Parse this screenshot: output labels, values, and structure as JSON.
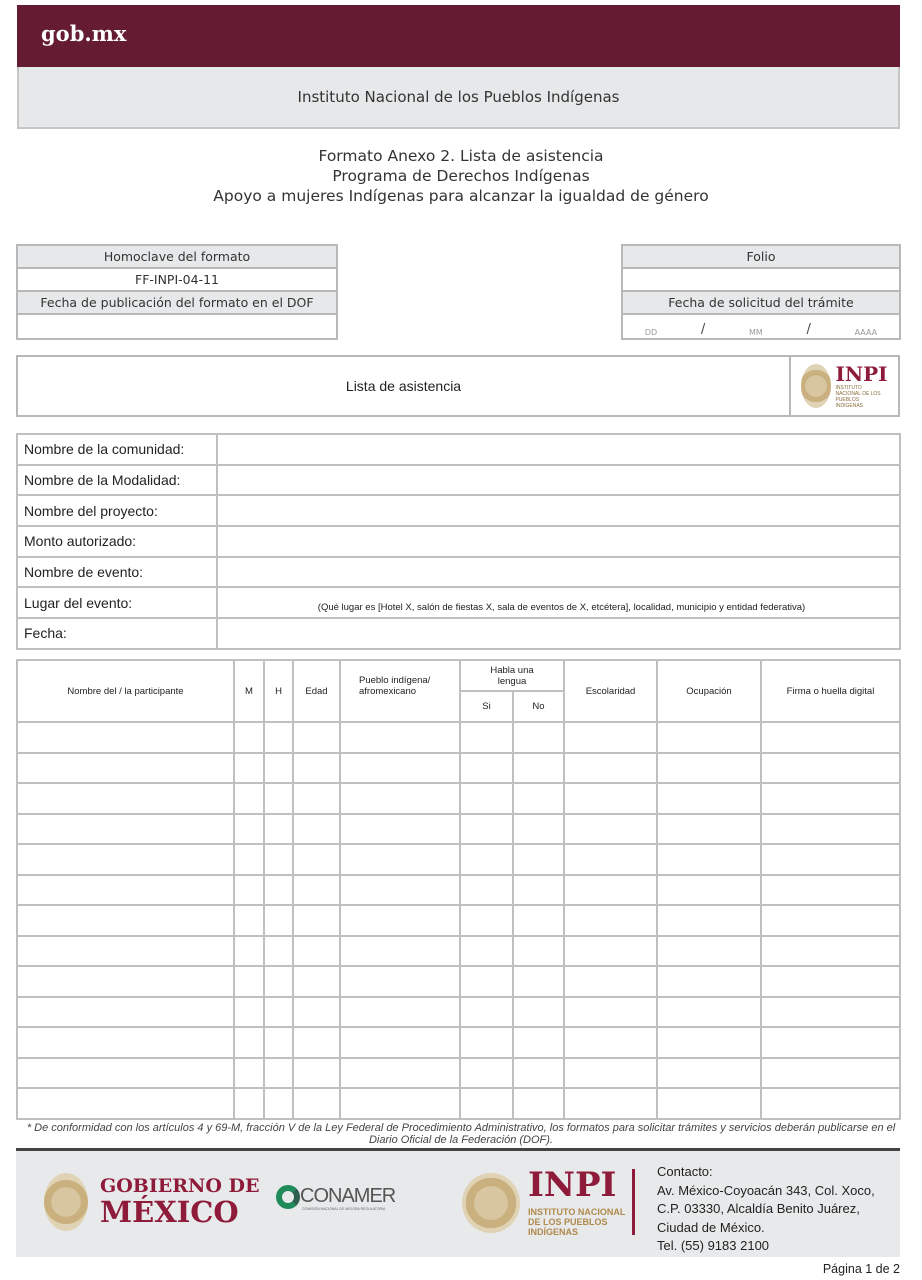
{
  "header": {
    "logo": "gob.mx",
    "institution": "Instituto Nacional de los Pueblos Indígenas"
  },
  "titles": [
    "Formato Anexo 2. Lista de asistencia",
    "Programa de Derechos Indígenas",
    "Apoyo a mujeres Indígenas para alcanzar la igualdad de género"
  ],
  "left_box": {
    "homoclave_label": "Homoclave del formato",
    "homoclave_value": "FF-INPI-04-11",
    "fecha_pub_label": "Fecha de publicación del formato en el DOF",
    "fecha_pub_value": ""
  },
  "right_box": {
    "folio_label": "Folio",
    "folio_value": "",
    "fecha_sol_label": "Fecha de solicitud del trámite",
    "dd": "DD",
    "mm": "MM",
    "aaaa": "AAAA",
    "sep": "/"
  },
  "lista": {
    "title": "Lista de asistencia",
    "logo_text": "INPI",
    "logo_sub": "INSTITUTO NACIONAL DE LOS PUEBLOS INDÍGENAS"
  },
  "info_rows": [
    {
      "label": "Nombre de la comunidad:",
      "value": ""
    },
    {
      "label": "Nombre de la Modalidad:",
      "value": ""
    },
    {
      "label": "Nombre del proyecto:",
      "value": ""
    },
    {
      "label": "Monto autorizado:",
      "value": ""
    },
    {
      "label": "Nombre de evento:",
      "value": ""
    },
    {
      "label": "Lugar del evento:",
      "value": "(Qué lugar es [Hotel X, salón de fiestas X, sala de eventos de X, etcétera], localidad, municipio y entidad federativa)"
    },
    {
      "label": "Fecha:",
      "value": ""
    }
  ],
  "participants": {
    "headers": {
      "nombre": "Nombre del / la participante",
      "m": "M",
      "h": "H",
      "edad": "Edad",
      "pueblo": "Pueblo indígena/ afromexicano",
      "habla": "Habla una lengua",
      "si": "Si",
      "no": "No",
      "escolaridad": "Escolaridad",
      "ocupacion": "Ocupación",
      "firma": "Firma o huella digital"
    },
    "empty_rows": 13
  },
  "footnote": "* De conformidad con los artículos 4 y 69-M, fracción V de la Ley Federal de Procedimiento Administrativo, los formatos para solicitar trámites y servicios deberán publicarse en el Diario Oficial de la Federación (DOF).",
  "footer": {
    "gob_line1": "GOBIERNO DE",
    "gob_line2": "MÉXICO",
    "conamer": "CONAMER",
    "conamer_sub": "COMISIÓN NACIONAL DE MEJORA REGULATORIA",
    "inpi": "INPI",
    "inpi_sub1": "INSTITUTO NACIONAL",
    "inpi_sub2": "DE LOS PUEBLOS",
    "inpi_sub3": "INDÍGENAS",
    "contact_label": "Contacto:",
    "address": [
      "Av. México-Coyoacán 343, Col. Xoco,",
      "C.P. 03330, Alcaldía Benito Juárez,",
      "Ciudad de México.",
      "Tel. (55) 9183 2100"
    ]
  },
  "page": "Página 1 de 2",
  "colors": {
    "brand": "#651b31",
    "band": "#e7e8e9"
  }
}
